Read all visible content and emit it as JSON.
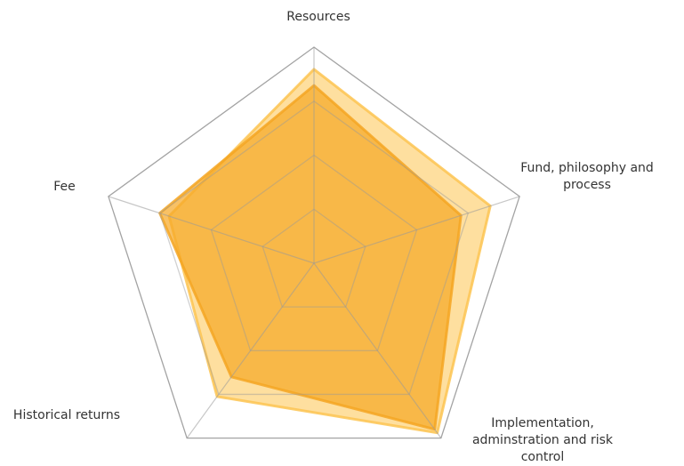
{
  "chart_data": {
    "type": "radar",
    "categories": [
      "Resources",
      "Fund, philosophy and process",
      "Implementation, adminstration and risk control",
      "Historical returns",
      "Fee"
    ],
    "series": [
      {
        "color": "#fdc451",
        "values": [
          3.59,
          3.43,
          3.88,
          3.05,
          2.82
        ]
      },
      {
        "color": "#f5a623",
        "values": [
          3.29,
          2.86,
          3.8,
          2.6,
          3.0
        ]
      }
    ],
    "rlim": [
      0,
      4
    ],
    "rticks": [
      1,
      2,
      3,
      4
    ],
    "grid": true
  }
}
